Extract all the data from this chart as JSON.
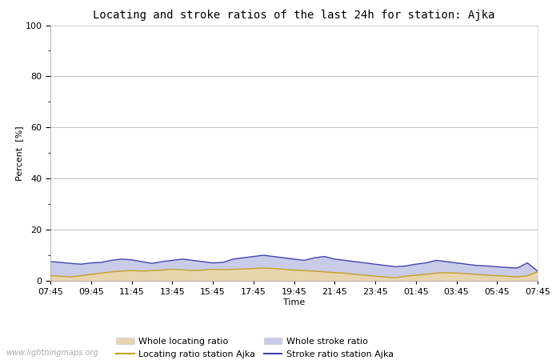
{
  "title": "Locating and stroke ratios of the last 24h for station: Ajka",
  "xlabel": "Time",
  "ylabel": "Percent  [%]",
  "ylim": [
    0,
    100
  ],
  "yticks": [
    0,
    20,
    40,
    60,
    80,
    100
  ],
  "minor_yticks": [
    10,
    30,
    50,
    70,
    90
  ],
  "x_labels": [
    "07:45",
    "09:45",
    "11:45",
    "13:45",
    "15:45",
    "17:45",
    "19:45",
    "21:45",
    "23:45",
    "01:45",
    "03:45",
    "05:45",
    "07:45"
  ],
  "background_color": "#ffffff",
  "plot_bg_color": "#ffffff",
  "grid_color": "#c0c0c0",
  "watermark": "www.lightningmaps.org",
  "whole_locating_color": "#e8d5b0",
  "whole_stroke_color": "#c8cce8",
  "locating_line_color": "#c8a020",
  "stroke_line_color": "#4040b0",
  "whole_locating_values": [
    2.0,
    1.8,
    1.5,
    2.0,
    2.5,
    3.0,
    3.5,
    3.8,
    4.0,
    3.8,
    4.0,
    4.2,
    4.5,
    4.3,
    4.0,
    4.2,
    4.5,
    4.3,
    4.5,
    4.6,
    4.8,
    5.0,
    4.8,
    4.5,
    4.2,
    4.0,
    3.8,
    3.5,
    3.2,
    3.0,
    2.5,
    2.2,
    1.8,
    1.5,
    1.2,
    1.8,
    2.2,
    2.5,
    3.0,
    3.2,
    3.0,
    2.8,
    2.5,
    2.2,
    2.0,
    1.8,
    1.5,
    2.0,
    3.5
  ],
  "whole_stroke_values": [
    7.5,
    7.2,
    6.8,
    6.5,
    7.0,
    7.2,
    8.0,
    8.5,
    8.2,
    7.5,
    6.8,
    7.5,
    8.0,
    8.5,
    8.0,
    7.5,
    7.0,
    7.2,
    8.5,
    9.0,
    9.5,
    10.0,
    9.5,
    9.0,
    8.5,
    8.0,
    9.0,
    9.5,
    8.5,
    8.0,
    7.5,
    7.0,
    6.5,
    6.0,
    5.5,
    5.8,
    6.5,
    7.0,
    8.0,
    7.5,
    7.0,
    6.5,
    6.0,
    5.8,
    5.5,
    5.2,
    5.0,
    7.0,
    3.8
  ],
  "locating_line_values": [
    2.0,
    1.8,
    1.5,
    2.0,
    2.5,
    3.0,
    3.5,
    3.8,
    4.0,
    3.8,
    4.0,
    4.2,
    4.5,
    4.3,
    4.0,
    4.2,
    4.5,
    4.3,
    4.5,
    4.6,
    4.8,
    5.0,
    4.8,
    4.5,
    4.2,
    4.0,
    3.8,
    3.5,
    3.2,
    3.0,
    2.5,
    2.2,
    1.8,
    1.5,
    1.2,
    1.8,
    2.2,
    2.5,
    3.0,
    3.2,
    3.0,
    2.8,
    2.5,
    2.2,
    2.0,
    1.8,
    1.5,
    2.0,
    3.5
  ],
  "stroke_line_values": [
    7.5,
    7.2,
    6.8,
    6.5,
    7.0,
    7.2,
    8.0,
    8.5,
    8.2,
    7.5,
    6.8,
    7.5,
    8.0,
    8.5,
    8.0,
    7.5,
    7.0,
    7.2,
    8.5,
    9.0,
    9.5,
    10.0,
    9.5,
    9.0,
    8.5,
    8.0,
    9.0,
    9.5,
    8.5,
    8.0,
    7.5,
    7.0,
    6.5,
    6.0,
    5.5,
    5.8,
    6.5,
    7.0,
    8.0,
    7.5,
    7.0,
    6.5,
    6.0,
    5.8,
    5.5,
    5.2,
    5.0,
    7.0,
    3.8
  ],
  "title_fontsize": 10,
  "label_fontsize": 8,
  "tick_fontsize": 8,
  "legend_fontsize": 8
}
